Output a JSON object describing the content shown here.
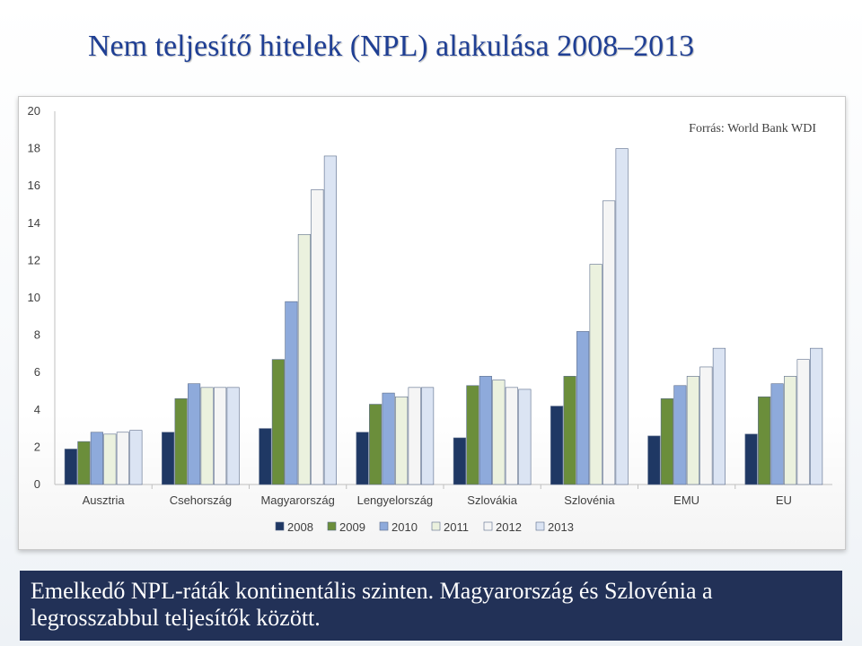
{
  "title": "Nem teljesítő hitelek (NPL) alakulása 2008–2013",
  "caption": "Emelkedő NPL-ráták kontinentális szinten. Magyarország és Szlovénia a legrosszabbul teljesítők között.",
  "chart_data": {
    "type": "bar",
    "title": "",
    "xlabel": "",
    "ylabel": "",
    "ylim": [
      0,
      20
    ],
    "yticks": [
      0,
      2,
      4,
      6,
      8,
      10,
      12,
      14,
      16,
      18,
      20
    ],
    "grid": false,
    "legend_position": "bottom",
    "annotation": "Forrás: World Bank WDI",
    "categories": [
      "Ausztria",
      "Csehország",
      "Magyarország",
      "Lengyelország",
      "Szlovákia",
      "Szlovénia",
      "EMU",
      "EU"
    ],
    "series": [
      {
        "name": "2008",
        "color": "#1f3864",
        "values": [
          1.9,
          2.8,
          3.0,
          2.8,
          2.5,
          4.2,
          2.6,
          2.7
        ]
      },
      {
        "name": "2009",
        "color": "#6b8e3b",
        "values": [
          2.3,
          4.6,
          6.7,
          4.3,
          5.3,
          5.8,
          4.6,
          4.7
        ]
      },
      {
        "name": "2010",
        "color": "#8eaadb",
        "values": [
          2.8,
          5.4,
          9.8,
          4.9,
          5.8,
          8.2,
          5.3,
          5.4
        ]
      },
      {
        "name": "2011",
        "color": "#ebf1de",
        "values": [
          2.7,
          5.2,
          13.4,
          4.7,
          5.6,
          11.8,
          5.8,
          5.8
        ]
      },
      {
        "name": "2012",
        "color": "#f5f5f5",
        "values": [
          2.8,
          5.2,
          15.8,
          5.2,
          5.2,
          15.2,
          6.3,
          6.7
        ]
      },
      {
        "name": "2013",
        "color": "#dbe4f3",
        "values": [
          2.9,
          5.2,
          17.6,
          5.2,
          5.1,
          18.0,
          7.3,
          7.3
        ]
      }
    ]
  }
}
